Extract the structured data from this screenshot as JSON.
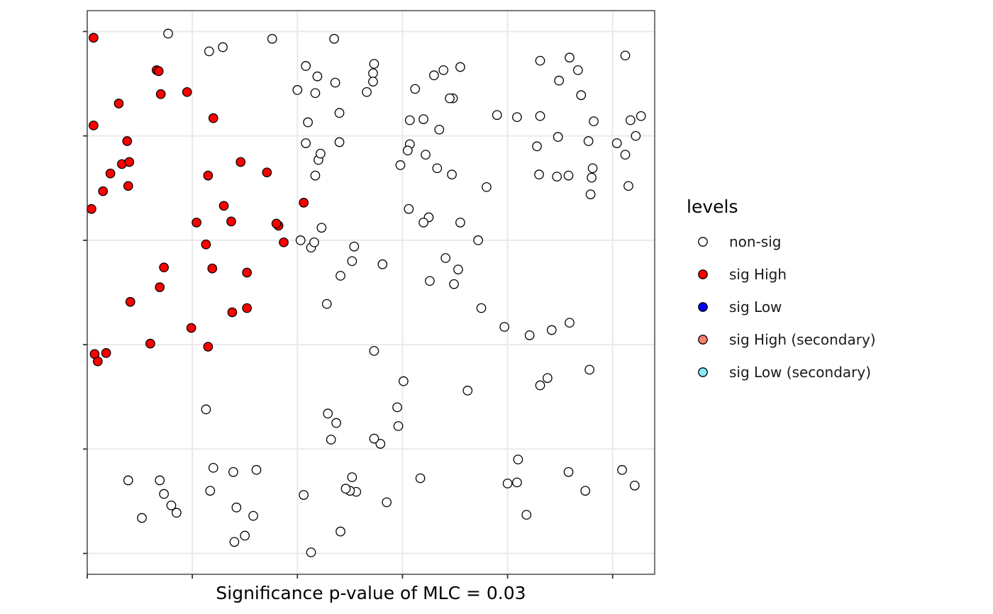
{
  "chart_data": {
    "type": "scatter",
    "title": "",
    "xlabel": "Significance p-value of MLC = 0.03",
    "ylabel": "",
    "xlim": [
      0,
      5.4
    ],
    "ylim": [
      -0.2,
      5.2
    ],
    "x_ticks": [
      0,
      1,
      2,
      3,
      4,
      5
    ],
    "y_ticks": [
      0,
      1,
      2,
      3,
      4,
      5
    ],
    "grid": true,
    "legend": {
      "title": "levels",
      "placement": "right",
      "entries": [
        {
          "label": "non-sig",
          "color": "#FFFFFF"
        },
        {
          "label": "sig High",
          "color": "#FF0000"
        },
        {
          "label": "sig Low",
          "color": "#0000FF"
        },
        {
          "label": "sig High (secondary)",
          "color": "#FA8072"
        },
        {
          "label": "sig Low (secondary)",
          "color": "#87E8F5"
        }
      ]
    },
    "series": [
      {
        "name": "non-sig",
        "color": "#FFFFFF",
        "points": [
          [
            0.77,
            4.98
          ],
          [
            1.16,
            4.81
          ],
          [
            1.29,
            4.85
          ],
          [
            1.76,
            4.93
          ],
          [
            2.35,
            4.93
          ],
          [
            2.0,
            4.44
          ],
          [
            2.73,
            4.69
          ],
          [
            2.72,
            4.6
          ],
          [
            2.72,
            4.52
          ],
          [
            3.39,
            4.63
          ],
          [
            3.12,
            4.45
          ],
          [
            3.48,
            4.36
          ],
          [
            3.3,
            4.58
          ],
          [
            3.55,
            4.66
          ],
          [
            3.9,
            4.2
          ],
          [
            3.2,
            4.16
          ],
          [
            3.07,
            4.15
          ],
          [
            2.17,
            4.41
          ],
          [
            2.66,
            4.42
          ],
          [
            4.31,
            4.72
          ],
          [
            4.49,
            4.53
          ],
          [
            4.59,
            4.75
          ],
          [
            4.67,
            4.63
          ],
          [
            5.12,
            4.77
          ],
          [
            5.27,
            4.19
          ],
          [
            4.82,
            4.14
          ],
          [
            2.19,
            4.57
          ],
          [
            2.08,
            4.67
          ],
          [
            2.1,
            4.13
          ],
          [
            2.4,
            4.22
          ],
          [
            3.35,
            4.06
          ],
          [
            4.09,
            4.18
          ],
          [
            3.07,
            3.92
          ],
          [
            4.81,
            3.69
          ],
          [
            5.22,
            4.0
          ],
          [
            5.17,
            4.15
          ],
          [
            2.36,
            4.51
          ],
          [
            2.4,
            3.94
          ],
          [
            2.98,
            3.72
          ],
          [
            3.05,
            3.86
          ],
          [
            3.22,
            3.82
          ],
          [
            3.33,
            3.69
          ],
          [
            3.47,
            3.63
          ],
          [
            3.45,
            4.36
          ],
          [
            4.8,
            3.6
          ],
          [
            2.2,
            3.77
          ],
          [
            2.08,
            3.93
          ],
          [
            2.22,
            3.83
          ],
          [
            4.48,
            3.99
          ],
          [
            4.7,
            4.39
          ],
          [
            2.17,
            3.62
          ],
          [
            3.25,
            3.22
          ],
          [
            3.2,
            3.17
          ],
          [
            3.06,
            3.3
          ],
          [
            3.55,
            3.17
          ],
          [
            3.8,
            3.51
          ],
          [
            3.72,
            3.0
          ],
          [
            4.3,
            3.63
          ],
          [
            4.47,
            3.61
          ],
          [
            4.58,
            3.62
          ],
          [
            4.77,
            3.95
          ],
          [
            5.12,
            3.82
          ],
          [
            5.04,
            3.93
          ],
          [
            4.79,
            3.44
          ],
          [
            5.15,
            3.52
          ],
          [
            4.31,
            4.19
          ],
          [
            4.28,
            3.9
          ],
          [
            2.28,
            2.39
          ],
          [
            2.23,
            3.12
          ],
          [
            2.03,
            3.0
          ],
          [
            2.13,
            2.93
          ],
          [
            2.16,
            2.98
          ],
          [
            2.41,
            2.66
          ],
          [
            2.52,
            2.8
          ],
          [
            2.54,
            2.94
          ],
          [
            2.81,
            2.77
          ],
          [
            3.53,
            2.72
          ],
          [
            3.75,
            2.35
          ],
          [
            3.49,
            2.58
          ],
          [
            3.41,
            2.83
          ],
          [
            3.26,
            2.61
          ],
          [
            3.97,
            2.17
          ],
          [
            4.21,
            2.09
          ],
          [
            4.42,
            2.14
          ],
          [
            4.59,
            2.21
          ],
          [
            4.31,
            1.61
          ],
          [
            4.38,
            1.68
          ],
          [
            4.78,
            1.76
          ],
          [
            3.62,
            1.56
          ],
          [
            3.01,
            1.65
          ],
          [
            2.73,
            1.94
          ],
          [
            2.95,
            1.4
          ],
          [
            2.79,
            1.05
          ],
          [
            2.96,
            1.22
          ],
          [
            3.17,
            0.72
          ],
          [
            4.1,
            0.9
          ],
          [
            4.0,
            0.67
          ],
          [
            4.09,
            0.68
          ],
          [
            4.18,
            0.37
          ],
          [
            4.58,
            0.78
          ],
          [
            4.74,
            0.6
          ],
          [
            5.09,
            0.8
          ],
          [
            5.21,
            0.65
          ],
          [
            2.85,
            0.49
          ],
          [
            2.56,
            0.59
          ],
          [
            2.37,
            1.25
          ],
          [
            2.29,
            1.34
          ],
          [
            2.32,
            1.09
          ],
          [
            2.73,
            1.1
          ],
          [
            2.5,
            0.6
          ],
          [
            2.41,
            0.21
          ],
          [
            1.39,
            0.78
          ],
          [
            1.61,
            0.8
          ],
          [
            1.42,
            0.44
          ],
          [
            1.2,
            0.82
          ],
          [
            1.17,
            0.6
          ],
          [
            1.13,
            1.38
          ],
          [
            0.69,
            0.7
          ],
          [
            0.73,
            0.57
          ],
          [
            0.39,
            0.7
          ],
          [
            0.52,
            0.34
          ],
          [
            0.8,
            0.46
          ],
          [
            0.85,
            0.39
          ],
          [
            1.58,
            0.36
          ],
          [
            1.4,
            0.11
          ],
          [
            1.5,
            0.17
          ],
          [
            2.13,
            0.01
          ],
          [
            2.06,
            0.56
          ],
          [
            2.46,
            0.62
          ],
          [
            2.52,
            0.73
          ]
        ]
      },
      {
        "name": "sig High",
        "color": "#FF0000",
        "points": [
          [
            0.06,
            4.94
          ],
          [
            0.66,
            4.63
          ],
          [
            0.68,
            4.62
          ],
          [
            0.7,
            4.4
          ],
          [
            0.95,
            4.42
          ],
          [
            0.3,
            4.31
          ],
          [
            1.2,
            4.17
          ],
          [
            0.06,
            4.1
          ],
          [
            0.38,
            3.95
          ],
          [
            0.33,
            3.73
          ],
          [
            0.4,
            3.75
          ],
          [
            0.22,
            3.64
          ],
          [
            0.39,
            3.52
          ],
          [
            1.46,
            3.75
          ],
          [
            1.71,
            3.65
          ],
          [
            0.15,
            3.47
          ],
          [
            1.15,
            3.62
          ],
          [
            1.3,
            3.33
          ],
          [
            0.04,
            3.3
          ],
          [
            1.37,
            3.18
          ],
          [
            2.06,
            3.36
          ],
          [
            1.82,
            3.14
          ],
          [
            1.8,
            3.16
          ],
          [
            1.87,
            2.98
          ],
          [
            1.04,
            3.17
          ],
          [
            1.13,
            2.96
          ],
          [
            1.19,
            2.73
          ],
          [
            1.52,
            2.69
          ],
          [
            0.73,
            2.74
          ],
          [
            0.69,
            2.55
          ],
          [
            0.41,
            2.41
          ],
          [
            1.38,
            2.31
          ],
          [
            1.52,
            2.35
          ],
          [
            0.99,
            2.16
          ],
          [
            0.6,
            2.01
          ],
          [
            1.15,
            1.98
          ],
          [
            0.07,
            1.91
          ],
          [
            0.18,
            1.92
          ],
          [
            0.1,
            1.84
          ]
        ]
      }
    ]
  }
}
